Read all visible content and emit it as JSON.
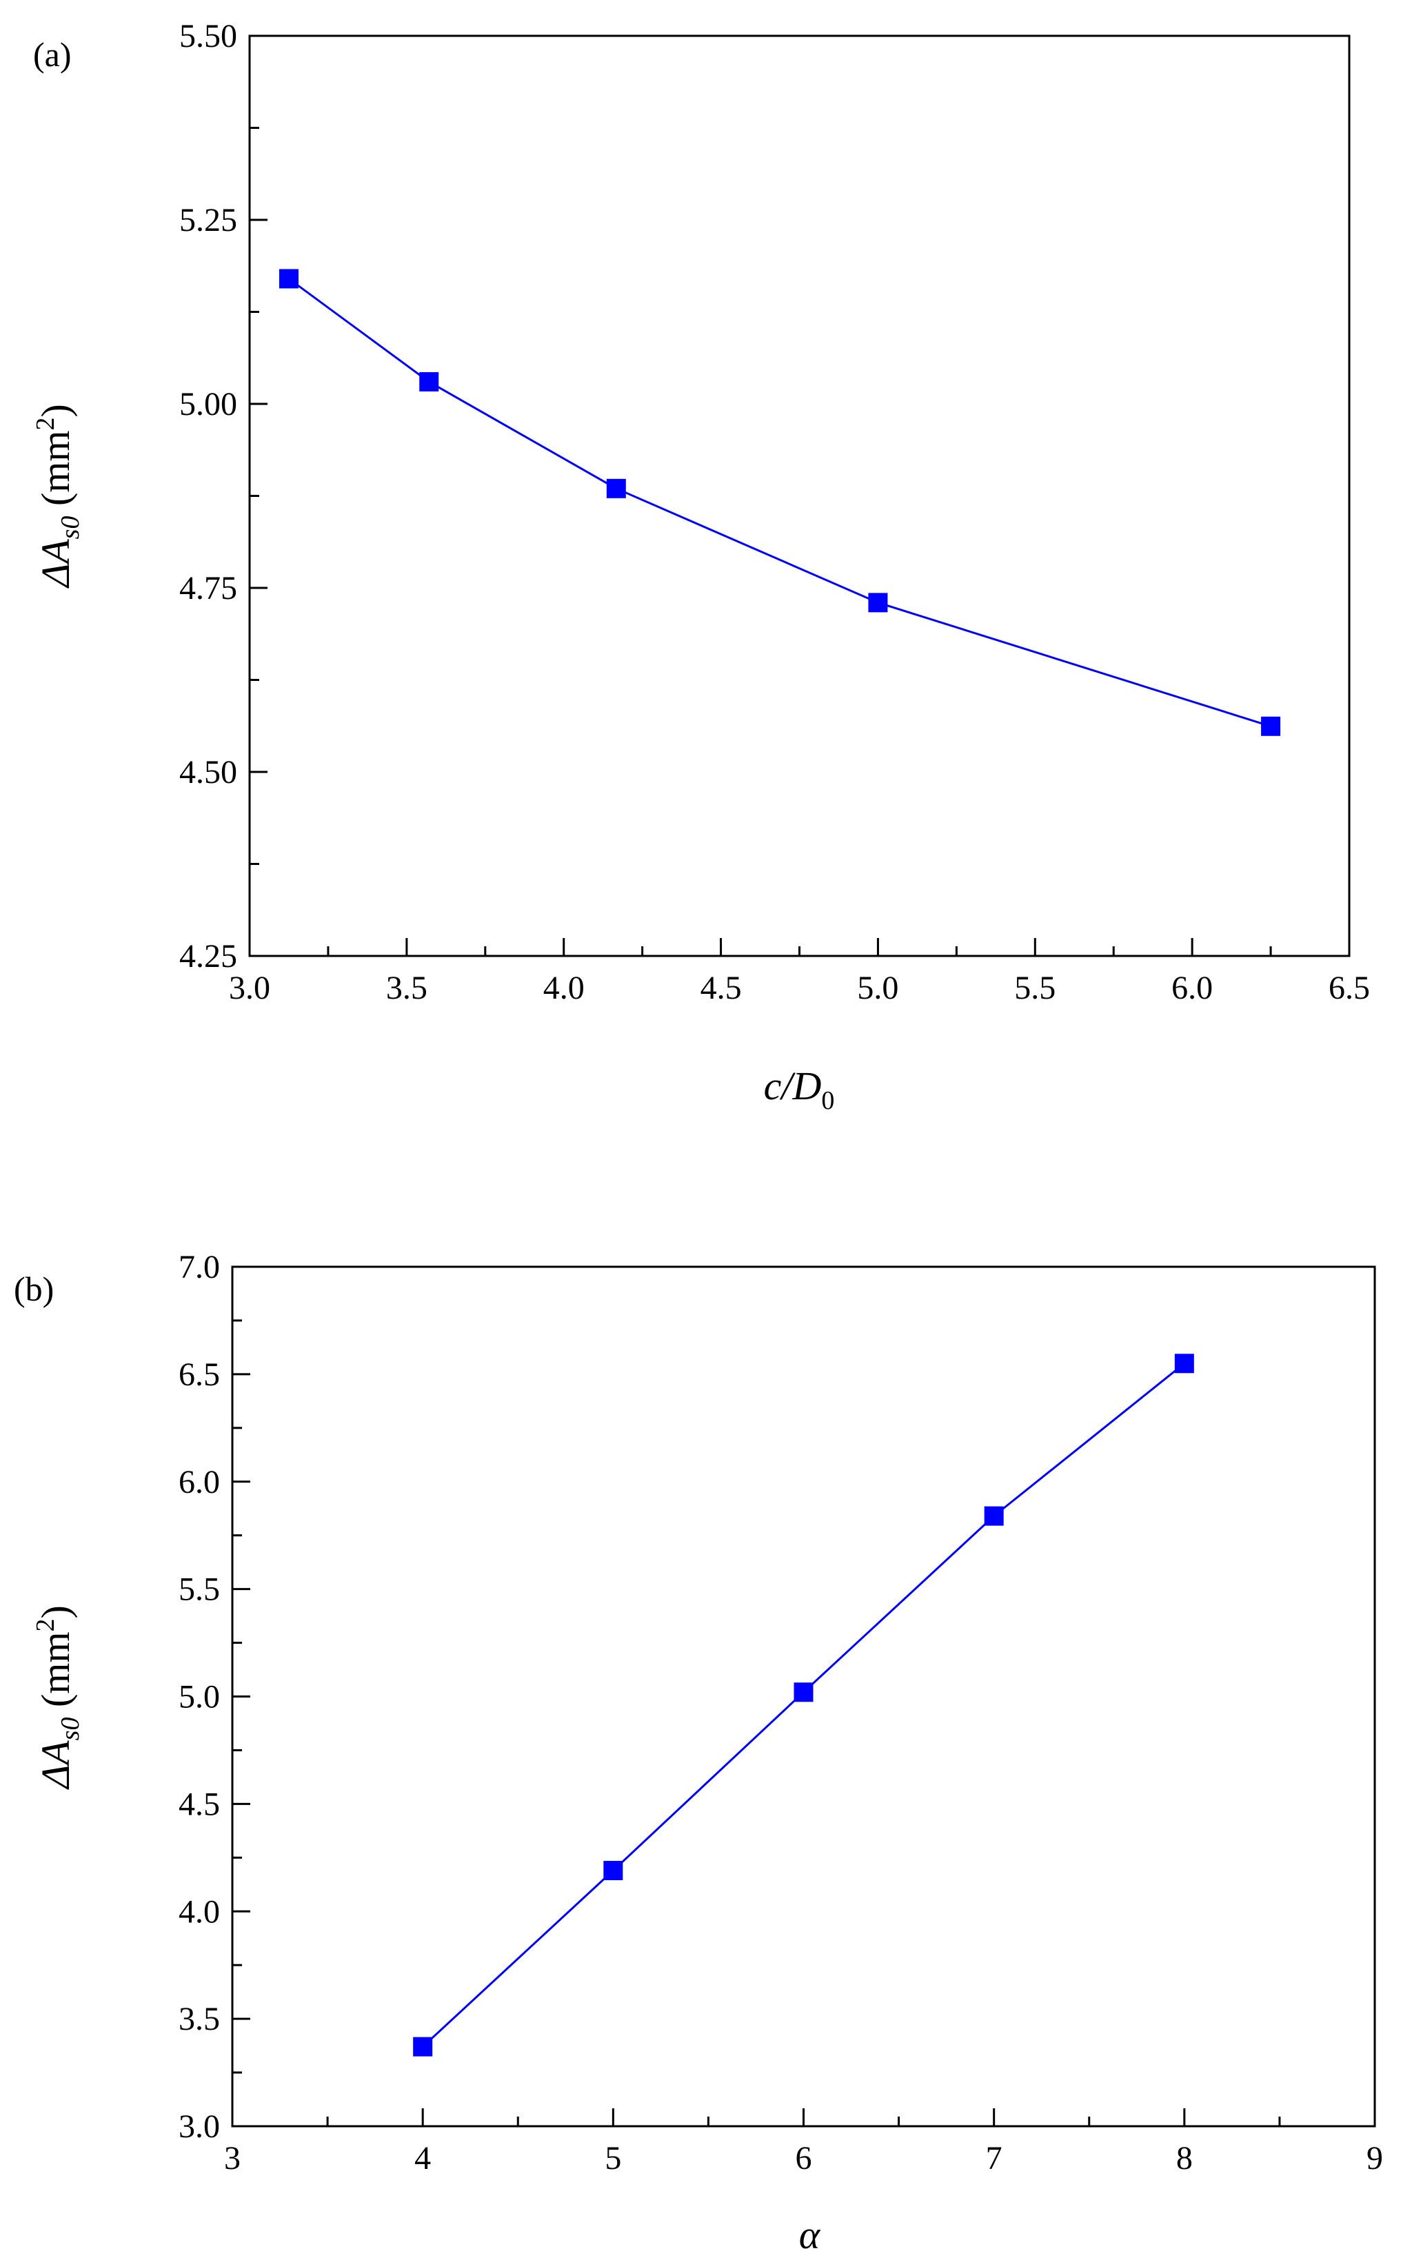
{
  "chart_data": [
    {
      "type": "line",
      "panel_label": "(a)",
      "x": [
        3.125,
        3.571,
        4.167,
        5.0,
        6.25
      ],
      "series": [
        {
          "values": [
            5.17,
            5.03,
            4.885,
            4.73,
            4.562
          ],
          "color": "#0000ff",
          "marker": "square"
        }
      ],
      "xlabel": {
        "italic_main": "c/D",
        "sub": "0"
      },
      "ylabel": {
        "delta": "ΔA",
        "sub": "s0",
        "unit_open": " (mm",
        "sup": "2",
        "unit_close": ")"
      },
      "xlim": [
        3.0,
        6.5
      ],
      "ylim": [
        4.25,
        5.5
      ],
      "xticks": [
        3.0,
        3.5,
        4.0,
        4.5,
        5.0,
        5.5,
        6.0,
        6.5
      ],
      "xtick_labels": [
        "3.0",
        "3.5",
        "4.0",
        "4.5",
        "5.0",
        "5.5",
        "6.0",
        "6.5"
      ],
      "yticks": [
        4.25,
        4.5,
        4.75,
        5.0,
        5.25,
        5.5
      ],
      "ytick_labels": [
        "4.25",
        "4.50",
        "4.75",
        "5.00",
        "5.25",
        "5.50"
      ],
      "grid": false
    },
    {
      "type": "line",
      "panel_label": "(b)",
      "x": [
        4,
        5,
        6,
        7,
        8
      ],
      "series": [
        {
          "values": [
            3.37,
            4.19,
            5.02,
            5.84,
            6.55
          ],
          "color": "#0000ff",
          "marker": "square"
        }
      ],
      "xlabel": {
        "italic_main": "α",
        "sub": ""
      },
      "ylabel": {
        "delta": "ΔA",
        "sub": "s0",
        "unit_open": " (mm",
        "sup": "2",
        "unit_close": ")"
      },
      "xlim": [
        3,
        9
      ],
      "ylim": [
        3.0,
        7.0
      ],
      "xticks": [
        3,
        4,
        5,
        6,
        7,
        8,
        9
      ],
      "xtick_labels": [
        "3",
        "4",
        "5",
        "6",
        "7",
        "8",
        "9"
      ],
      "yticks": [
        3.0,
        3.5,
        4.0,
        4.5,
        5.0,
        5.5,
        6.0,
        6.5,
        7.0
      ],
      "ytick_labels": [
        "3.0",
        "3.5",
        "4.0",
        "4.5",
        "5.0",
        "5.5",
        "6.0",
        "6.5",
        "7.0"
      ],
      "grid": false
    }
  ]
}
